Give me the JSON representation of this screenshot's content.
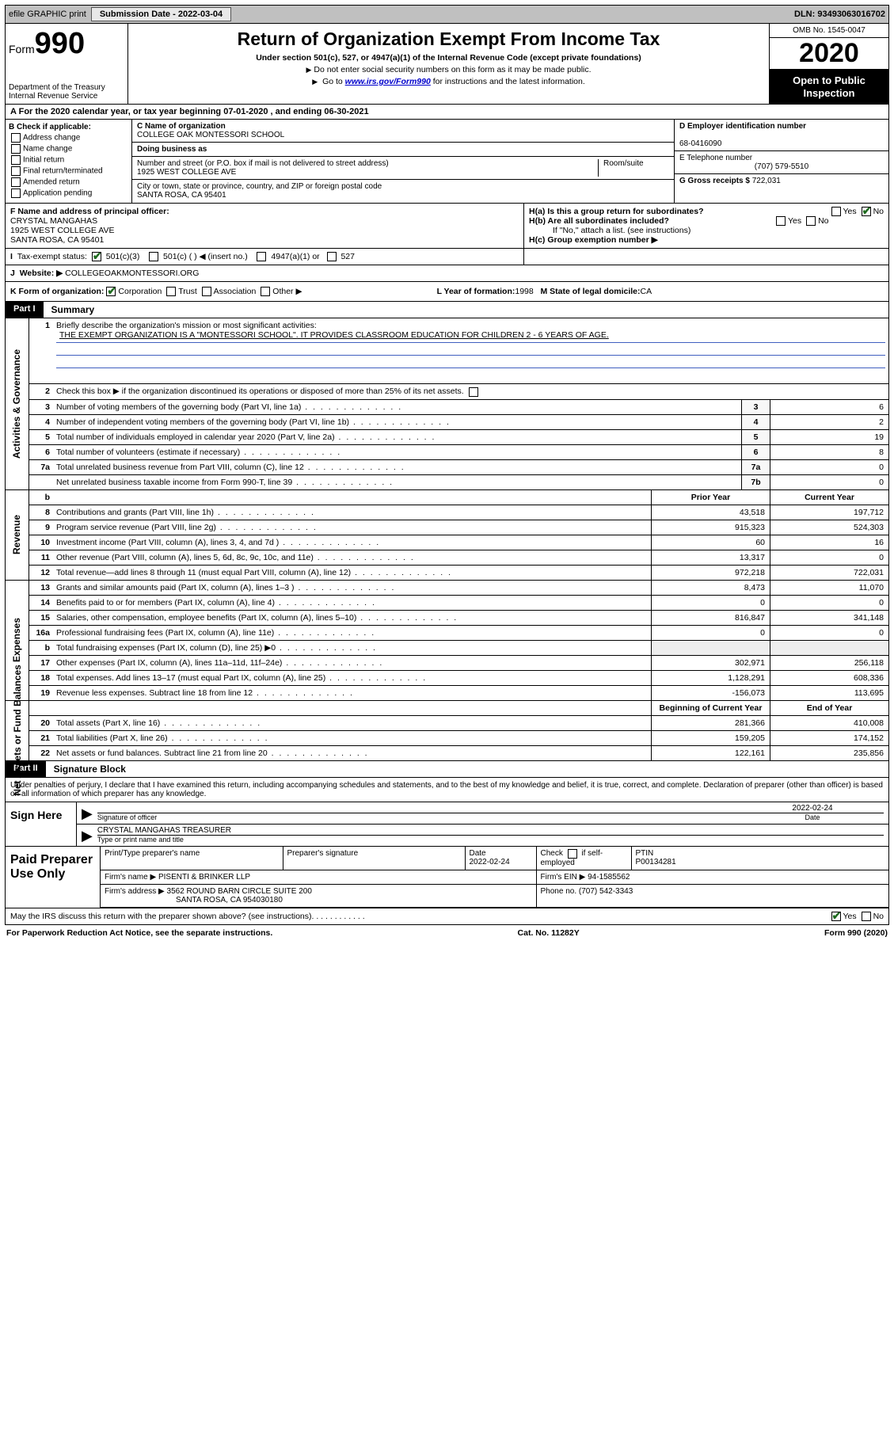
{
  "topbar": {
    "efile_label": "efile GRAPHIC print",
    "submission_label": "Submission Date - 2022-03-04",
    "dln_label": "DLN: 93493063016702"
  },
  "header": {
    "form_word": "Form",
    "form_num": "990",
    "dept": "Department of the Treasury\nInternal Revenue Service",
    "title": "Return of Organization Exempt From Income Tax",
    "subtitle": "Under section 501(c), 527, or 4947(a)(1) of the Internal Revenue Code (except private foundations)",
    "note1": "Do not enter social security numbers on this form as it may be made public.",
    "note2_pre": "Go to ",
    "note2_link": "www.irs.gov/Form990",
    "note2_post": " for instructions and the latest information.",
    "omb": "OMB No. 1545-0047",
    "year": "2020",
    "open": "Open to Public Inspection"
  },
  "periodline": "For the 2020 calendar year, or tax year beginning 07-01-2020    , and ending 06-30-2021",
  "boxB": {
    "head": "B Check if applicable:",
    "items": [
      "Address change",
      "Name change",
      "Initial return",
      "Final return/terminated",
      "Amended return",
      "Application pending"
    ]
  },
  "boxC": {
    "name_lbl": "C Name of organization",
    "name_val": "COLLEGE OAK MONTESSORI SCHOOL",
    "dba_lbl": "Doing business as",
    "addr_lbl": "Number and street (or P.O. box if mail is not delivered to street address)",
    "room_lbl": "Room/suite",
    "addr_val": "1925 WEST COLLEGE AVE",
    "city_lbl": "City or town, state or province, country, and ZIP or foreign postal code",
    "city_val": "SANTA ROSA, CA  95401"
  },
  "boxD": {
    "ein_lbl": "D Employer identification number",
    "ein_val": "68-0416090",
    "tel_lbl": "E Telephone number",
    "tel_val": "(707) 579-5510",
    "gross_lbl": "G Gross receipts $",
    "gross_val": "722,031"
  },
  "boxF": {
    "lbl": "F  Name and address of principal officer:",
    "l1": "CRYSTAL MANGAHAS",
    "l2": "1925 WEST COLLEGE AVE",
    "l3": "SANTA ROSA, CA  95401"
  },
  "boxH": {
    "a": "H(a)  Is this a group return for subordinates?",
    "b": "H(b)  Are all subordinates included?",
    "b_note": "If \"No,\" attach a list. (see instructions)",
    "c": "H(c)  Group exemption number ▶",
    "yes": "Yes",
    "no": "No"
  },
  "boxI": {
    "lbl": "Tax-exempt status:",
    "o1": "501(c)(3)",
    "o2": "501(c) (   ) ◀ (insert no.)",
    "o3": "4947(a)(1) or",
    "o4": "527"
  },
  "boxJ": {
    "lbl": "Website: ▶",
    "val": "COLLEGEOAKMONTESSORI.ORG"
  },
  "boxK": {
    "lbl": "K Form of organization:",
    "o1": "Corporation",
    "o2": "Trust",
    "o3": "Association",
    "o4": "Other ▶",
    "l_lbl": "L Year of formation:",
    "l_val": "1998",
    "m_lbl": "M State of legal domicile:",
    "m_val": "CA"
  },
  "part1": {
    "bar_tag": "Part I",
    "bar_title": "Summary",
    "side1": "Activities & Governance",
    "side2": "Revenue",
    "side3": "Expenses",
    "side4": "Net Assets or Fund Balances",
    "l1_lbl": "Briefly describe the organization's mission or most significant activities:",
    "l1_val": "THE EXEMPT ORGANIZATION IS A \"MONTESSORI SCHOOL\". IT PROVIDES CLASSROOM EDUCATION FOR CHILDREN 2 - 6 YEARS OF AGE.",
    "l2": "Check this box ▶        if the organization discontinued its operations or disposed of more than 25% of its net assets.",
    "rows_small": [
      {
        "n": "3",
        "d": "Number of voting members of the governing body (Part VI, line 1a)",
        "box": "3",
        "v": "6"
      },
      {
        "n": "4",
        "d": "Number of independent voting members of the governing body (Part VI, line 1b)",
        "box": "4",
        "v": "2"
      },
      {
        "n": "5",
        "d": "Total number of individuals employed in calendar year 2020 (Part V, line 2a)",
        "box": "5",
        "v": "19"
      },
      {
        "n": "6",
        "d": "Total number of volunteers (estimate if necessary)",
        "box": "6",
        "v": "8"
      },
      {
        "n": "7a",
        "d": "Total unrelated business revenue from Part VIII, column (C), line 12",
        "box": "7a",
        "v": "0"
      },
      {
        "n": "",
        "d": "Net unrelated business taxable income from Form 990-T, line 39",
        "box": "7b",
        "v": "0"
      }
    ],
    "col_prior": "Prior Year",
    "col_current": "Current Year",
    "rows_rev": [
      {
        "n": "8",
        "d": "Contributions and grants (Part VIII, line 1h)",
        "p": "43,518",
        "c": "197,712"
      },
      {
        "n": "9",
        "d": "Program service revenue (Part VIII, line 2g)",
        "p": "915,323",
        "c": "524,303"
      },
      {
        "n": "10",
        "d": "Investment income (Part VIII, column (A), lines 3, 4, and 7d )",
        "p": "60",
        "c": "16"
      },
      {
        "n": "11",
        "d": "Other revenue (Part VIII, column (A), lines 5, 6d, 8c, 9c, 10c, and 11e)",
        "p": "13,317",
        "c": "0"
      },
      {
        "n": "12",
        "d": "Total revenue—add lines 8 through 11 (must equal Part VIII, column (A), line 12)",
        "p": "972,218",
        "c": "722,031"
      }
    ],
    "rows_exp": [
      {
        "n": "13",
        "d": "Grants and similar amounts paid (Part IX, column (A), lines 1–3 )",
        "p": "8,473",
        "c": "11,070"
      },
      {
        "n": "14",
        "d": "Benefits paid to or for members (Part IX, column (A), line 4)",
        "p": "0",
        "c": "0"
      },
      {
        "n": "15",
        "d": "Salaries, other compensation, employee benefits (Part IX, column (A), lines 5–10)",
        "p": "816,847",
        "c": "341,148"
      },
      {
        "n": "16a",
        "d": "Professional fundraising fees (Part IX, column (A), line 11e)",
        "p": "0",
        "c": "0"
      },
      {
        "n": "b",
        "d": "Total fundraising expenses (Part IX, column (D), line 25) ▶0",
        "p": "",
        "c": "",
        "grey": true
      },
      {
        "n": "17",
        "d": "Other expenses (Part IX, column (A), lines 11a–11d, 11f–24e)",
        "p": "302,971",
        "c": "256,118"
      },
      {
        "n": "18",
        "d": "Total expenses. Add lines 13–17 (must equal Part IX, column (A), line 25)",
        "p": "1,128,291",
        "c": "608,336"
      },
      {
        "n": "19",
        "d": "Revenue less expenses. Subtract line 18 from line 12",
        "p": "-156,073",
        "c": "113,695"
      }
    ],
    "col_begin": "Beginning of Current Year",
    "col_end": "End of Year",
    "rows_net": [
      {
        "n": "20",
        "d": "Total assets (Part X, line 16)",
        "p": "281,366",
        "c": "410,008"
      },
      {
        "n": "21",
        "d": "Total liabilities (Part X, line 26)",
        "p": "159,205",
        "c": "174,152"
      },
      {
        "n": "22",
        "d": "Net assets or fund balances. Subtract line 21 from line 20",
        "p": "122,161",
        "c": "235,856"
      }
    ]
  },
  "part2": {
    "bar_tag": "Part II",
    "bar_title": "Signature Block"
  },
  "sig": {
    "para": "Under penalties of perjury, I declare that I have examined this return, including accompanying schedules and statements, and to the best of my knowledge and belief, it is true, correct, and complete. Declaration of preparer (other than officer) is based on all information of which preparer has any knowledge.",
    "sign_here": "Sign Here",
    "sig_lbl": "Signature of officer",
    "date_lbl": "Date",
    "date_val": "2022-02-24",
    "name_val": "CRYSTAL MANGAHAS  TREASURER",
    "name_lbl": "Type or print name and title"
  },
  "prep": {
    "side": "Paid Preparer Use Only",
    "h1": "Print/Type preparer's name",
    "h2": "Preparer's signature",
    "h3": "Date",
    "h3v": "2022-02-24",
    "h4": "Check         if self-employed",
    "h5": "PTIN",
    "h5v": "P00134281",
    "firm_lbl": "Firm's name      ▶",
    "firm_val": "PISENTI & BRINKER LLP",
    "ein_lbl": "Firm's EIN ▶",
    "ein_val": "94-1585562",
    "addr_lbl": "Firm's address ▶",
    "addr_val": "3562 ROUND BARN CIRCLE SUITE 200",
    "addr_val2": "SANTA ROSA, CA  954030180",
    "phone_lbl": "Phone no.",
    "phone_val": "(707) 542-3343",
    "discuss": "May the IRS discuss this return with the preparer shown above? (see instructions)",
    "yes": "Yes",
    "no": "No"
  },
  "footer": {
    "left": "For Paperwork Reduction Act Notice, see the separate instructions.",
    "mid": "Cat. No. 11282Y",
    "right": "Form 990 (2020)"
  }
}
